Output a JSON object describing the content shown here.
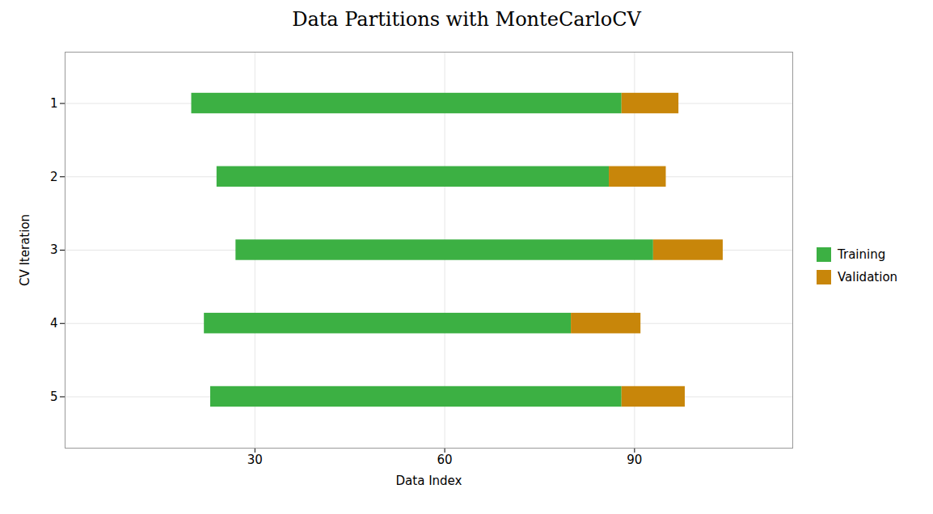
{
  "chart_data": {
    "type": "bar",
    "orientation": "horizontal",
    "title": "Data Partitions with MonteCarloCV",
    "xlabel": "Data Index",
    "ylabel": "CV Iteration",
    "y": [
      1,
      2,
      3,
      4,
      5
    ],
    "series": [
      {
        "name": "Training",
        "color": "#3cb043",
        "start": [
          20,
          24,
          27,
          22,
          23
        ],
        "end": [
          88,
          86,
          93,
          80,
          88
        ]
      },
      {
        "name": "Validation",
        "color": "#c8860a",
        "start": [
          88,
          86,
          93,
          80,
          88
        ],
        "end": [
          97,
          95,
          104,
          91,
          98
        ]
      }
    ],
    "xlim": [
      0,
      115
    ],
    "xticks": [
      30,
      60,
      90
    ],
    "ylim": [
      5.7,
      0.3
    ],
    "yticks": [
      1,
      2,
      3,
      4,
      5
    ],
    "grid": true,
    "legend": "right"
  }
}
